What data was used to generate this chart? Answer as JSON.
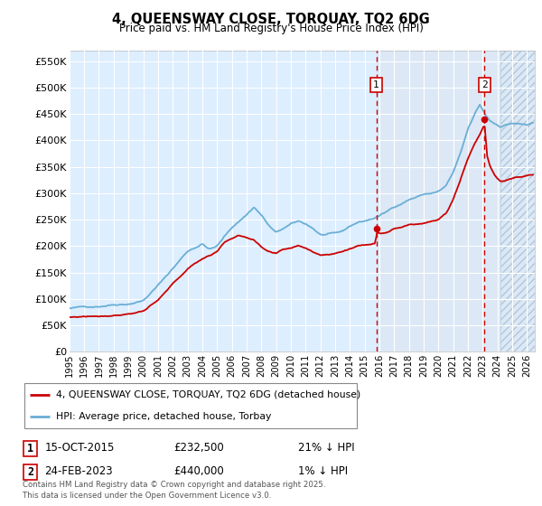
{
  "title": "4, QUEENSWAY CLOSE, TORQUAY, TQ2 6DG",
  "subtitle": "Price paid vs. HM Land Registry's House Price Index (HPI)",
  "ylabel_ticks": [
    "£0",
    "£50K",
    "£100K",
    "£150K",
    "£200K",
    "£250K",
    "£300K",
    "£350K",
    "£400K",
    "£450K",
    "£500K",
    "£550K"
  ],
  "ylim": [
    0,
    570000
  ],
  "xlim_start": 1995.0,
  "xlim_end": 2026.5,
  "hpi_color": "#6aaed6",
  "price_color": "#cc0000",
  "marker1_x": 2015.79,
  "marker1_y": 232500,
  "marker1_label": "1",
  "marker1_date": "15-OCT-2015",
  "marker1_price": "£232,500",
  "marker1_hpi": "21% ↓ HPI",
  "marker2_x": 2023.12,
  "marker2_y": 440000,
  "marker2_label": "2",
  "marker2_date": "24-FEB-2023",
  "marker2_price": "£440,000",
  "marker2_hpi": "1% ↓ HPI",
  "legend_line1": "4, QUEENSWAY CLOSE, TORQUAY, TQ2 6DG (detached house)",
  "legend_line2": "HPI: Average price, detached house, Torbay",
  "footnote": "Contains HM Land Registry data © Crown copyright and database right 2025.\nThis data is licensed under the Open Government Licence v3.0.",
  "background_color": "#ffffff",
  "plot_bg_color": "#ddeeff",
  "grid_color": "#ffffff",
  "vline_color": "#cc0000",
  "highlight_bg": "#dce8f5",
  "hatch_start": 2024.2
}
